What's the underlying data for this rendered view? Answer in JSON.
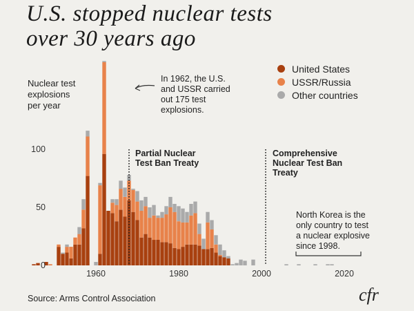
{
  "title_line1": "U.S. stopped nuclear tests",
  "title_line2": "over 30 years ago",
  "colors": {
    "us": "#a8400f",
    "ussr": "#e8824a",
    "other": "#aaaaaa",
    "background": "#f1f0ec"
  },
  "legend": [
    {
      "label": "United States",
      "color": "#a8400f"
    },
    {
      "label": "USSR/Russia",
      "color": "#e8824a"
    },
    {
      "label": "Other countries",
      "color": "#aaaaaa"
    }
  ],
  "ylabel_lines": [
    "Nuclear test",
    "explosions",
    "per year"
  ],
  "annotation_1962": [
    "In 1962, the U.S.",
    "and USSR carried",
    "out 175 test",
    "explosions."
  ],
  "ptbt_label": [
    "Partial Nuclear",
    "Test Ban Treaty"
  ],
  "ctbt_label": [
    "Comprehensive",
    "Nuclear Test Ban",
    "Treaty"
  ],
  "nk_note": [
    "North Korea is the",
    "only country to test",
    "a nuclear explosive",
    "since 1998."
  ],
  "source": "Source: Arms Control Association",
  "logo": "cfr",
  "chart_data": {
    "type": "bar",
    "stacked": true,
    "ylabel": "Nuclear test explosions per year",
    "ylim": [
      0,
      175
    ],
    "yticks": [
      0,
      50,
      100
    ],
    "xticks": [
      1960,
      1980,
      2000,
      2020
    ],
    "xlim": [
      1945,
      2023
    ],
    "markers": [
      {
        "year": 1963,
        "label": "Partial Nuclear Test Ban Treaty"
      },
      {
        "year": 1996,
        "label": "Comprehensive Nuclear Test Ban Treaty"
      }
    ],
    "years": [
      1945,
      1946,
      1947,
      1948,
      1949,
      1950,
      1951,
      1952,
      1953,
      1954,
      1955,
      1956,
      1957,
      1958,
      1959,
      1960,
      1961,
      1962,
      1963,
      1964,
      1965,
      1966,
      1967,
      1968,
      1969,
      1970,
      1971,
      1972,
      1973,
      1974,
      1975,
      1976,
      1977,
      1978,
      1979,
      1980,
      1981,
      1982,
      1983,
      1984,
      1985,
      1986,
      1987,
      1988,
      1989,
      1990,
      1991,
      1992,
      1993,
      1994,
      1995,
      1996,
      1997,
      1998,
      1999,
      2000,
      2001,
      2002,
      2003,
      2004,
      2005,
      2006,
      2007,
      2008,
      2009,
      2010,
      2011,
      2012,
      2013,
      2014,
      2015,
      2016,
      2017,
      2018,
      2019,
      2020,
      2021,
      2022
    ],
    "series": [
      {
        "name": "United States",
        "values": [
          1,
          2,
          0,
          3,
          0,
          0,
          16,
          10,
          11,
          6,
          18,
          18,
          32,
          77,
          0,
          0,
          10,
          96,
          47,
          45,
          38,
          48,
          42,
          56,
          46,
          39,
          24,
          27,
          24,
          22,
          22,
          20,
          20,
          19,
          15,
          14,
          16,
          18,
          18,
          18,
          17,
          14,
          14,
          15,
          11,
          8,
          7,
          6,
          0,
          0,
          0,
          0,
          0,
          0,
          0,
          0,
          0,
          0,
          0,
          0,
          0,
          0,
          0,
          0,
          0,
          0,
          0,
          0,
          0,
          0,
          0,
          0,
          0,
          0,
          0,
          0,
          0,
          0
        ]
      },
      {
        "name": "USSR/Russia",
        "values": [
          0,
          0,
          0,
          0,
          1,
          0,
          2,
          0,
          5,
          10,
          6,
          9,
          16,
          34,
          0,
          0,
          59,
          79,
          0,
          9,
          14,
          18,
          17,
          17,
          19,
          16,
          23,
          24,
          17,
          21,
          19,
          21,
          24,
          31,
          31,
          24,
          21,
          19,
          25,
          27,
          10,
          0,
          23,
          16,
          7,
          1,
          0,
          0,
          0,
          0,
          0,
          0,
          0,
          0,
          0,
          0,
          0,
          0,
          0,
          0,
          0,
          0,
          0,
          0,
          0,
          0,
          0,
          0,
          0,
          0,
          0,
          0,
          0,
          0,
          0,
          0,
          0,
          0
        ]
      },
      {
        "name": "Other countries",
        "values": [
          0,
          0,
          0,
          0,
          0,
          0,
          0,
          1,
          2,
          0,
          0,
          6,
          9,
          5,
          0,
          3,
          2,
          1,
          0,
          3,
          5,
          7,
          8,
          5,
          1,
          9,
          9,
          8,
          9,
          9,
          2,
          5,
          7,
          9,
          7,
          13,
          12,
          9,
          10,
          10,
          9,
          9,
          9,
          8,
          8,
          9,
          6,
          2,
          1,
          2,
          5,
          4,
          0,
          5,
          0,
          0,
          0,
          0,
          0,
          0,
          0,
          1,
          0,
          0,
          1,
          0,
          0,
          0,
          1,
          0,
          0,
          1,
          1,
          0,
          0,
          0,
          0,
          0
        ]
      }
    ]
  }
}
